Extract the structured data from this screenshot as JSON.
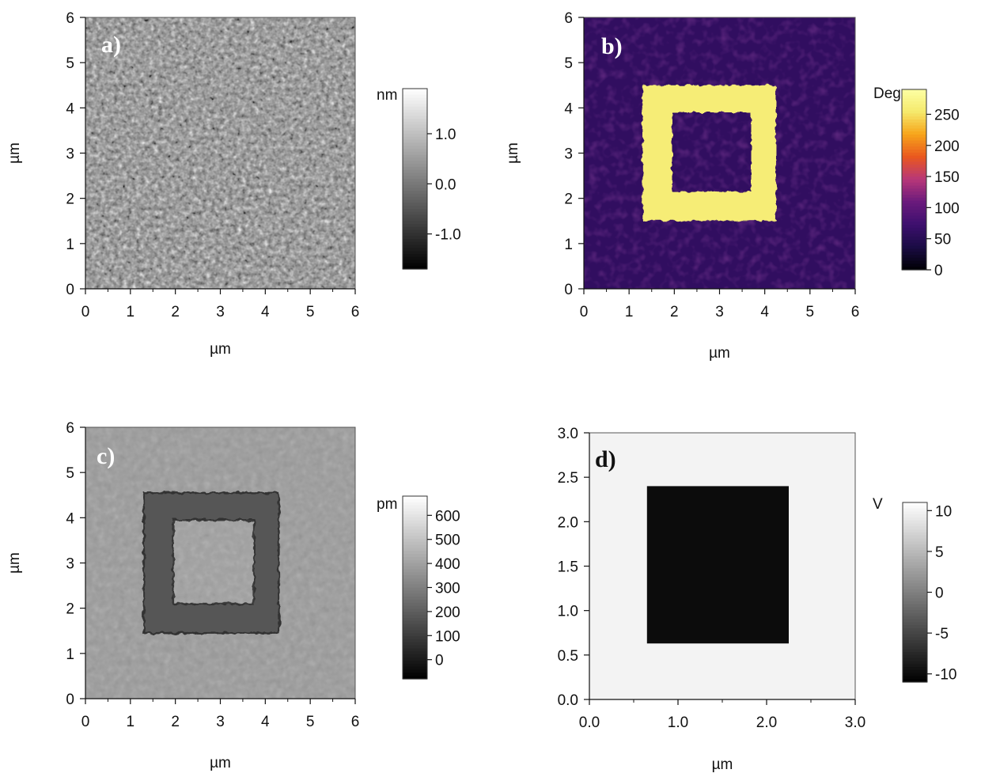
{
  "chart_data": [
    {
      "type": "heatmap",
      "panel_label": "a)",
      "xlabel": "µm",
      "ylabel": "µm",
      "x_ticks": [
        "0",
        "1",
        "2",
        "3",
        "4",
        "5",
        "6"
      ],
      "y_ticks": [
        "0",
        "1",
        "2",
        "3",
        "4",
        "5",
        "6"
      ],
      "xlim": [
        0,
        6
      ],
      "ylim": [
        0,
        6
      ],
      "colorbar": {
        "unit": "nm",
        "ticks": [
          1.0,
          0.0,
          -1.0
        ],
        "tick_labels": [
          "1.0",
          "0.0",
          "-1.0"
        ],
        "range": [
          -1.7,
          1.9
        ],
        "colormap": "gray",
        "colors": [
          "#000000",
          "#ffffff"
        ]
      },
      "pattern": "random-texture"
    },
    {
      "type": "heatmap",
      "panel_label": "b)",
      "xlabel": "µm",
      "ylabel": "µm",
      "x_ticks": [
        "0",
        "1",
        "2",
        "3",
        "4",
        "5",
        "6"
      ],
      "y_ticks": [
        "0",
        "1",
        "2",
        "3",
        "4",
        "5",
        "6"
      ],
      "xlim": [
        0,
        6
      ],
      "ylim": [
        0,
        6
      ],
      "colorbar": {
        "unit": "Deg",
        "ticks": [
          250,
          200,
          150,
          100,
          50,
          0
        ],
        "tick_labels": [
          "250",
          "200",
          "150",
          "100",
          "50",
          "0"
        ],
        "range": [
          0,
          290
        ],
        "colormap": "inferno",
        "colors": [
          "#000004",
          "#1a0c44",
          "#3d0f6e",
          "#6a1a7c",
          "#b73779",
          "#e9571f",
          "#f7a41a",
          "#f5e96c",
          "#fcffa4"
        ]
      },
      "background_value": 60,
      "ring": {
        "outer": [
          1.3,
          4.25,
          1.5,
          4.5
        ],
        "inner": [
          1.95,
          3.7,
          2.15,
          3.9
        ],
        "value": 260
      }
    },
    {
      "type": "heatmap",
      "panel_label": "c)",
      "xlabel": "µm",
      "ylabel": "µm",
      "x_ticks": [
        "0",
        "1",
        "2",
        "3",
        "4",
        "5",
        "6"
      ],
      "y_ticks": [
        "0",
        "1",
        "2",
        "3",
        "4",
        "5",
        "6"
      ],
      "xlim": [
        0,
        6
      ],
      "ylim": [
        0,
        6
      ],
      "colorbar": {
        "unit": "pm",
        "ticks": [
          600,
          500,
          400,
          300,
          200,
          100,
          0
        ],
        "tick_labels": [
          "600",
          "500",
          "400",
          "300",
          "200",
          "100",
          "0"
        ],
        "range": [
          -80,
          680
        ],
        "colormap": "gray",
        "colors": [
          "#000000",
          "#ffffff"
        ]
      },
      "background_value": 380,
      "ring": {
        "outer": [
          1.3,
          4.3,
          1.45,
          4.55
        ],
        "inner": [
          1.95,
          3.75,
          2.1,
          3.95
        ],
        "value": 180
      }
    },
    {
      "type": "heatmap",
      "panel_label": "d)",
      "xlabel": "µm",
      "ylabel": "",
      "x_ticks": [
        "0.0",
        "1.0",
        "2.0",
        "3.0"
      ],
      "y_ticks": [
        "0.0",
        "0.5",
        "1.0",
        "1.5",
        "2.0",
        "2.5",
        "3.0"
      ],
      "xlim": [
        0,
        3
      ],
      "ylim": [
        0,
        3
      ],
      "colorbar": {
        "unit": "V",
        "ticks": [
          10,
          5,
          0,
          -5,
          -10
        ],
        "tick_labels": [
          "10",
          "5",
          "0",
          "-5",
          "-10"
        ],
        "range": [
          -11,
          11
        ],
        "colormap": "gray",
        "colors": [
          "#000000",
          "#ffffff"
        ]
      },
      "background_value": 10,
      "rect": {
        "x0": 0.65,
        "x1": 2.25,
        "y0": 0.63,
        "y1": 2.4,
        "value": -10
      }
    }
  ]
}
